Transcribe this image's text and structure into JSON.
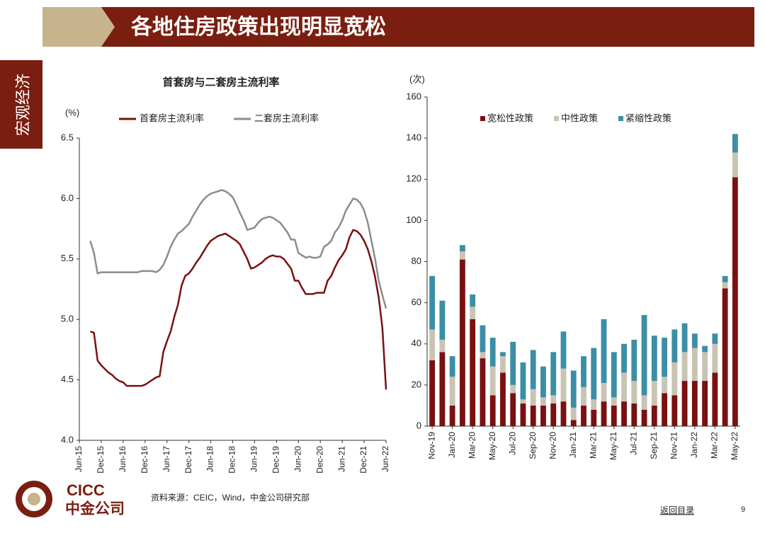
{
  "header": {
    "title": "各地住房政策出现明显宽松",
    "side_tab": "宏观经济"
  },
  "logo": {
    "en": "CICC",
    "cn": "中金公司"
  },
  "footer": {
    "source": "资料来源：CEIC，Wind，中金公司研究部",
    "back": "返回目录",
    "page": "9"
  },
  "chart_data": [
    {
      "type": "line",
      "title": "首套房与二套房主流利率",
      "y_label": "(%)",
      "categories": [
        "Jun-15",
        null,
        null,
        null,
        null,
        null,
        "Dec-15",
        null,
        null,
        null,
        null,
        null,
        "Jun-16",
        null,
        null,
        null,
        null,
        null,
        "Dec-16",
        null,
        null,
        null,
        null,
        null,
        "Jun-17",
        null,
        null,
        null,
        null,
        null,
        "Dec-17",
        null,
        null,
        null,
        null,
        null,
        "Jun-18",
        null,
        null,
        null,
        null,
        null,
        "Dec-18",
        null,
        null,
        null,
        null,
        null,
        "Jun-19",
        null,
        null,
        null,
        null,
        null,
        "Dec-19",
        null,
        null,
        null,
        null,
        null,
        "Jun-20",
        null,
        null,
        null,
        null,
        null,
        "Dec-20",
        null,
        null,
        null,
        null,
        null,
        "Jun-21",
        null,
        null,
        null,
        null,
        null,
        "Dec-21",
        null,
        null,
        null,
        null,
        null,
        "Jun-22"
      ],
      "series": [
        {
          "name": "首套房主流利率",
          "color": "#7a1010",
          "values": [
            null,
            null,
            null,
            4.9,
            4.89,
            4.66,
            4.62,
            4.59,
            4.56,
            4.54,
            4.51,
            4.49,
            4.48,
            4.45,
            4.45,
            4.45,
            4.45,
            4.45,
            4.46,
            4.48,
            4.5,
            4.52,
            4.53,
            4.73,
            4.82,
            4.9,
            5.02,
            5.12,
            5.28,
            5.36,
            5.38,
            5.42,
            5.47,
            5.51,
            5.56,
            5.61,
            5.65,
            5.67,
            5.69,
            5.7,
            5.71,
            5.69,
            5.67,
            5.65,
            5.62,
            5.56,
            5.5,
            5.42,
            5.43,
            5.45,
            5.47,
            5.5,
            5.52,
            5.53,
            5.52,
            5.52,
            5.5,
            5.46,
            5.42,
            5.32,
            5.32,
            5.26,
            5.21,
            5.21,
            5.21,
            5.22,
            5.22,
            5.22,
            5.32,
            5.36,
            5.43,
            5.49,
            5.53,
            5.58,
            5.68,
            5.74,
            5.73,
            5.7,
            5.65,
            5.58,
            5.48,
            5.35,
            5.18,
            4.93,
            4.42
          ]
        },
        {
          "name": "二套房主流利率",
          "color": "#8c8c8c",
          "values": [
            null,
            null,
            null,
            5.65,
            5.55,
            5.38,
            5.39,
            5.39,
            5.39,
            5.39,
            5.39,
            5.39,
            5.39,
            5.39,
            5.39,
            5.39,
            5.39,
            5.4,
            5.4,
            5.4,
            5.4,
            5.39,
            5.41,
            5.45,
            5.52,
            5.6,
            5.66,
            5.71,
            5.73,
            5.76,
            5.79,
            5.85,
            5.9,
            5.95,
            5.99,
            6.02,
            6.04,
            6.05,
            6.06,
            6.07,
            6.06,
            6.04,
            6.01,
            5.95,
            5.88,
            5.82,
            5.74,
            5.75,
            5.76,
            5.8,
            5.83,
            5.84,
            5.85,
            5.84,
            5.82,
            5.8,
            5.76,
            5.72,
            5.66,
            5.66,
            5.55,
            5.53,
            5.51,
            5.52,
            5.51,
            5.51,
            5.52,
            5.6,
            5.62,
            5.65,
            5.72,
            5.76,
            5.82,
            5.9,
            5.95,
            6.0,
            5.99,
            5.96,
            5.9,
            5.8,
            5.65,
            5.5,
            5.32,
            5.2,
            5.09
          ]
        }
      ],
      "ylim": [
        4,
        6.5
      ],
      "yticks": [
        {
          "value": 4,
          "label": "4.0"
        },
        4.5,
        {
          "value": 5,
          "label": "5.0"
        },
        5.5,
        {
          "value": 6,
          "label": "6.0"
        },
        6.5
      ],
      "legend": "top",
      "grid": false
    },
    {
      "type": "bar",
      "stacked": true,
      "y_label": "(次)",
      "categories": [
        "Nov-19",
        null,
        "Jan-20",
        null,
        "Mar-20",
        null,
        "May-20",
        null,
        "Jul-20",
        null,
        "Sep-20",
        null,
        "Nov-20",
        null,
        "Jan-21",
        null,
        "Mar-21",
        null,
        "May-21",
        null,
        "Jul-21",
        null,
        "Sep-21",
        null,
        "Nov-21",
        null,
        "Jan-22",
        null,
        "Mar-22",
        null,
        "May-22"
      ],
      "series": [
        {
          "name": "宽松性政策",
          "color": "#7a1010",
          "values": [
            32,
            36,
            10,
            81,
            52,
            33,
            15,
            26,
            16,
            11,
            10,
            10,
            11,
            12,
            3,
            10,
            8,
            12,
            10,
            12,
            11,
            8,
            10,
            16,
            15,
            22,
            22,
            22,
            26,
            67,
            121
          ]
        },
        {
          "name": "中性政策",
          "color": "#c9c3b3",
          "values": [
            15,
            6,
            14,
            4,
            6,
            3,
            14,
            8,
            4,
            2,
            8,
            4,
            4,
            16,
            6,
            9,
            5,
            9,
            4,
            14,
            11,
            7,
            12,
            8,
            16,
            14,
            16,
            14,
            14,
            3,
            12
          ]
        },
        {
          "name": "紧缩性政策",
          "color": "#3b8ea5",
          "values": [
            26,
            19,
            10,
            3,
            6,
            13,
            14,
            2,
            21,
            18,
            19,
            15,
            21,
            18,
            18,
            15,
            25,
            31,
            22,
            14,
            20,
            39,
            22,
            19,
            16,
            14,
            7,
            3,
            5,
            3,
            9
          ]
        }
      ],
      "ylim": [
        0,
        160
      ],
      "yticks": [
        0,
        20,
        40,
        60,
        80,
        100,
        120,
        140,
        160
      ],
      "legend": "top",
      "grid": false
    }
  ]
}
